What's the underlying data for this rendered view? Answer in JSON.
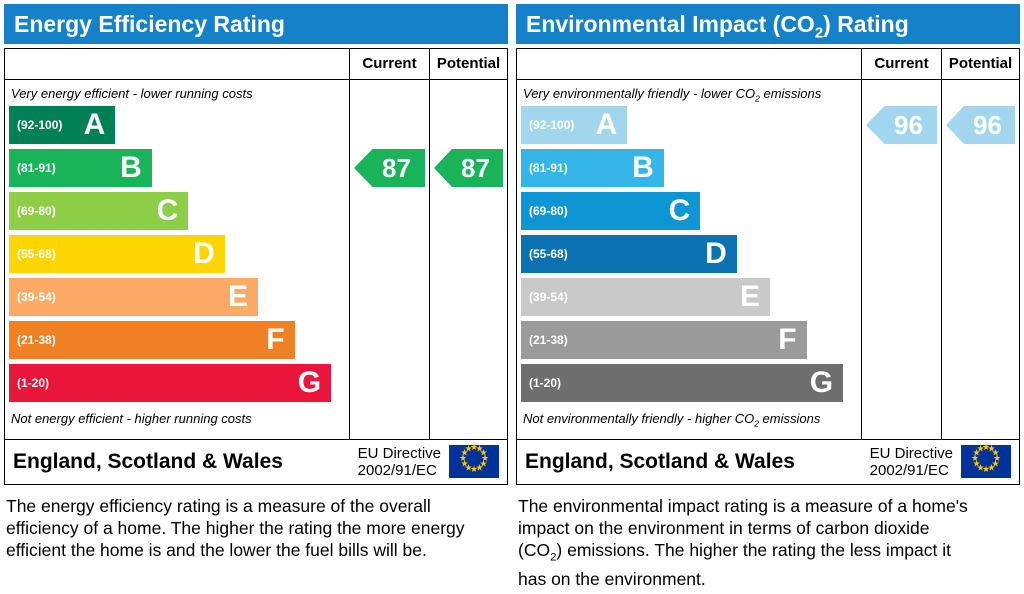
{
  "chart_data": [
    {
      "type": "bar",
      "title": "Energy Efficiency Rating",
      "categories": [
        "A",
        "B",
        "C",
        "D",
        "E",
        "F",
        "G"
      ],
      "band_ranges": [
        "92-100",
        "81-91",
        "69-80",
        "55-68",
        "39-54",
        "21-38",
        "1-20"
      ],
      "series": [
        {
          "name": "Current",
          "values": [
            87
          ],
          "band": "B"
        },
        {
          "name": "Potential",
          "values": [
            87
          ],
          "band": "B"
        }
      ],
      "top_label": "Very energy efficient - lower running costs",
      "bottom_label": "Not energy efficient - higher running costs",
      "footer": "England, Scotland & Wales - EU Directive 2002/91/EC",
      "ylim": [
        1,
        100
      ],
      "legend_position": "top-right-columns"
    },
    {
      "type": "bar",
      "title": "Environmental Impact (CO2) Rating",
      "categories": [
        "A",
        "B",
        "C",
        "D",
        "E",
        "F",
        "G"
      ],
      "band_ranges": [
        "92-100",
        "81-91",
        "69-80",
        "55-68",
        "39-54",
        "21-38",
        "1-20"
      ],
      "series": [
        {
          "name": "Current",
          "values": [
            96
          ],
          "band": "A"
        },
        {
          "name": "Potential",
          "values": [
            96
          ],
          "band": "A"
        }
      ],
      "top_label": "Very environmentally friendly - lower CO2 emissions",
      "bottom_label": "Not environmentally friendly - higher CO2 emissions",
      "footer": "England, Scotland & Wales - EU Directive 2002/91/EC",
      "ylim": [
        1,
        100
      ],
      "legend_position": "top-right-columns"
    }
  ],
  "left": {
    "title_parts": [
      "Energy Efficiency Rating",
      "",
      ""
    ],
    "header_color": "#1581c8",
    "columns": {
      "current": "Current",
      "potential": "Potential"
    },
    "top_caption_parts": [
      "Very energy efficient - lower running costs",
      "",
      ""
    ],
    "bottom_caption_parts": [
      "Not energy efficient - higher running costs",
      "",
      ""
    ],
    "bands": [
      {
        "letter": "A",
        "range": "(92-100)",
        "color": "#008054",
        "width_pct": 32
      },
      {
        "letter": "B",
        "range": "(81-91)",
        "color": "#19b459",
        "width_pct": 43
      },
      {
        "letter": "C",
        "range": "(69-80)",
        "color": "#8dce46",
        "width_pct": 54
      },
      {
        "letter": "D",
        "range": "(55-68)",
        "color": "#ffd500",
        "width_pct": 65
      },
      {
        "letter": "E",
        "range": "(39-54)",
        "color": "#fcaa65",
        "width_pct": 75
      },
      {
        "letter": "F",
        "range": "(21-38)",
        "color": "#ef8023",
        "width_pct": 86
      },
      {
        "letter": "G",
        "range": "(1-20)",
        "color": "#e9153b",
        "width_pct": 97
      }
    ],
    "current": {
      "value": 87,
      "band_index": 1,
      "color": "#19b459",
      "text_color": "#ffffff"
    },
    "potential": {
      "value": 87,
      "band_index": 1,
      "color": "#19b459",
      "text_color": "#ffffff"
    },
    "footer": {
      "region": "England, Scotland & Wales",
      "directive_line1": "EU Directive",
      "directive_line2": "2002/91/EC"
    },
    "description_parts": [
      "The energy efficiency rating is a measure of the overall efficiency of a home. The higher the rating the more energy efficient the home is and the lower the fuel bills will be.",
      "",
      ""
    ]
  },
  "right": {
    "title_parts": [
      "Environmental Impact (CO",
      "2",
      ") Rating"
    ],
    "header_color": "#1581c8",
    "columns": {
      "current": "Current",
      "potential": "Potential"
    },
    "top_caption_parts": [
      "Very environmentally friendly - lower CO",
      "2",
      " emissions"
    ],
    "bottom_caption_parts": [
      "Not environmentally friendly - higher CO",
      "2",
      " emissions"
    ],
    "bands": [
      {
        "letter": "A",
        "range": "(92-100)",
        "color": "#a2d6ef",
        "width_pct": 32
      },
      {
        "letter": "B",
        "range": "(81-91)",
        "color": "#36b5e8",
        "width_pct": 43
      },
      {
        "letter": "C",
        "range": "(69-80)",
        "color": "#0e96d4",
        "width_pct": 54
      },
      {
        "letter": "D",
        "range": "(55-68)",
        "color": "#0b71b0",
        "width_pct": 65
      },
      {
        "letter": "E",
        "range": "(39-54)",
        "color": "#c9c9c9",
        "width_pct": 75
      },
      {
        "letter": "F",
        "range": "(21-38)",
        "color": "#9a9a9a",
        "width_pct": 86
      },
      {
        "letter": "G",
        "range": "(1-20)",
        "color": "#6e6e6e",
        "width_pct": 97
      }
    ],
    "current": {
      "value": 96,
      "band_index": 0,
      "color": "#a2d6ef",
      "text_color": "#ffffff"
    },
    "potential": {
      "value": 96,
      "band_index": 0,
      "color": "#a2d6ef",
      "text_color": "#ffffff"
    },
    "footer": {
      "region": "England, Scotland & Wales",
      "directive_line1": "EU Directive",
      "directive_line2": "2002/91/EC"
    },
    "description_parts": [
      "The environmental impact rating is a measure of a home's impact on the environment in terms of carbon dioxide (CO",
      "2",
      ") emissions. The higher the rating the less impact it has on the environment."
    ]
  }
}
